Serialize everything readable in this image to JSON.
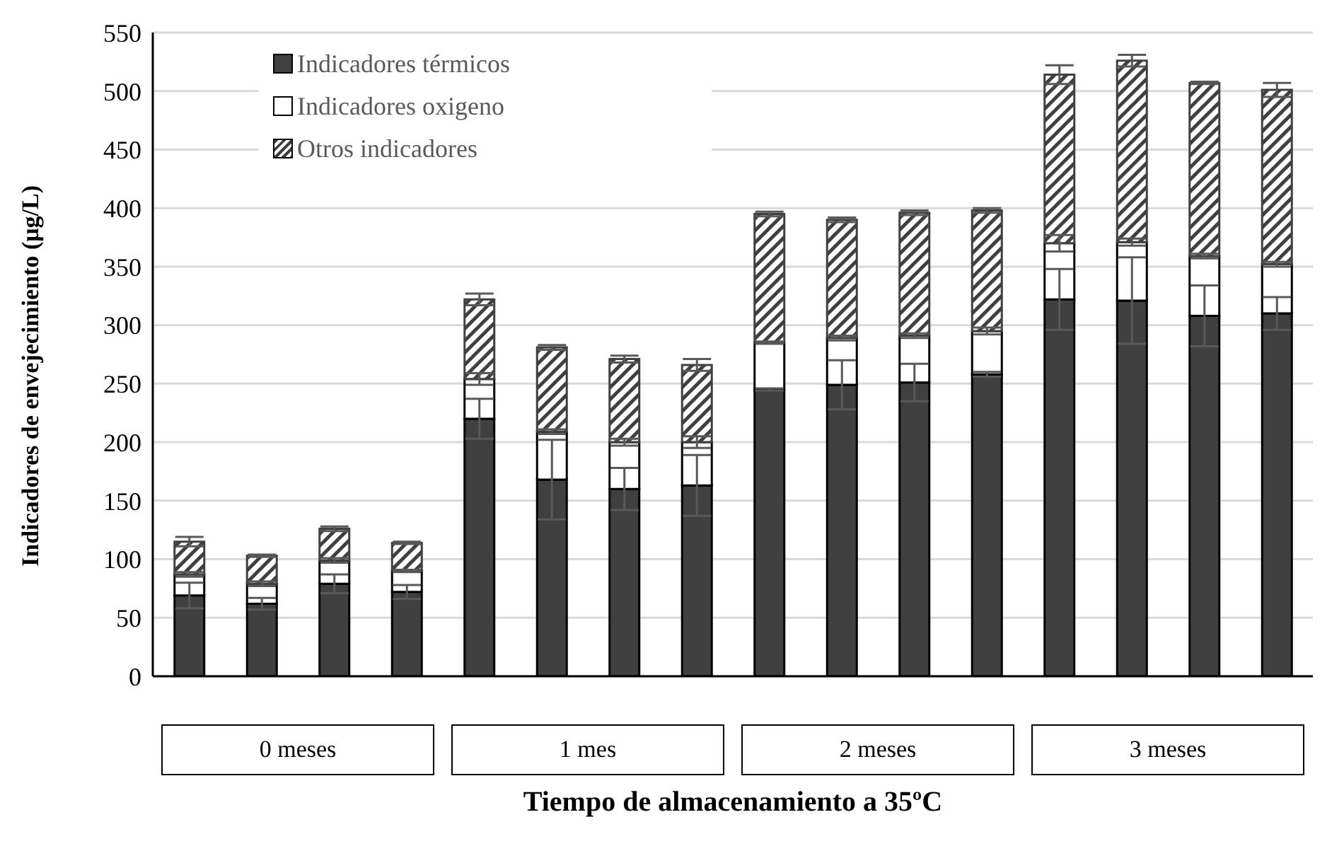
{
  "chart_data": {
    "type": "bar",
    "stacked": true,
    "xlabel": "Tiempo de almacenamiento a 35ºC",
    "ylabel": "Indicadores de envejecimiento (μg/L)",
    "categories": [
      null,
      null,
      null,
      null,
      null,
      null,
      null,
      null,
      null,
      null,
      null,
      null,
      null,
      null,
      null,
      null
    ],
    "series": [
      {
        "name": "Indicadores térmicos",
        "color": "#404040",
        "values": [
          69,
          62,
          79,
          72,
          220,
          168,
          160,
          163,
          245,
          249,
          251,
          258,
          322,
          321,
          308,
          310
        ],
        "errors": [
          11,
          5,
          8,
          6,
          17,
          34,
          18,
          26,
          1,
          21,
          16,
          2,
          26,
          37,
          26,
          14
        ]
      },
      {
        "name": "Indicadores oxigeno",
        "color": "#ffffff",
        "values": [
          18,
          17,
          20,
          18,
          34,
          41,
          40,
          37,
          40,
          40,
          40,
          37,
          48,
          50,
          51,
          42
        ],
        "errors": [
          2,
          2,
          2,
          1,
          5,
          2,
          3,
          5,
          1,
          2,
          2,
          3,
          7,
          3,
          2,
          2
        ]
      },
      {
        "name": "Otros indicadores",
        "color": "#404040",
        "values": [
          28,
          24,
          27,
          24,
          68,
          72,
          71,
          66,
          110,
          101,
          105,
          103,
          144,
          155,
          148,
          149
        ],
        "errors": [
          4,
          1,
          2,
          1,
          5,
          2,
          3,
          5,
          2,
          2,
          2,
          2,
          8,
          5,
          1,
          6
        ]
      }
    ],
    "ylim": [
      0,
      550
    ],
    "yticks": [
      0,
      50,
      100,
      150,
      200,
      250,
      300,
      350,
      400,
      450,
      500,
      550
    ],
    "grid": "y",
    "legend": "top left",
    "annotations": [
      "0 meses",
      "1 mes",
      "2 meses",
      "3 meses"
    ]
  }
}
